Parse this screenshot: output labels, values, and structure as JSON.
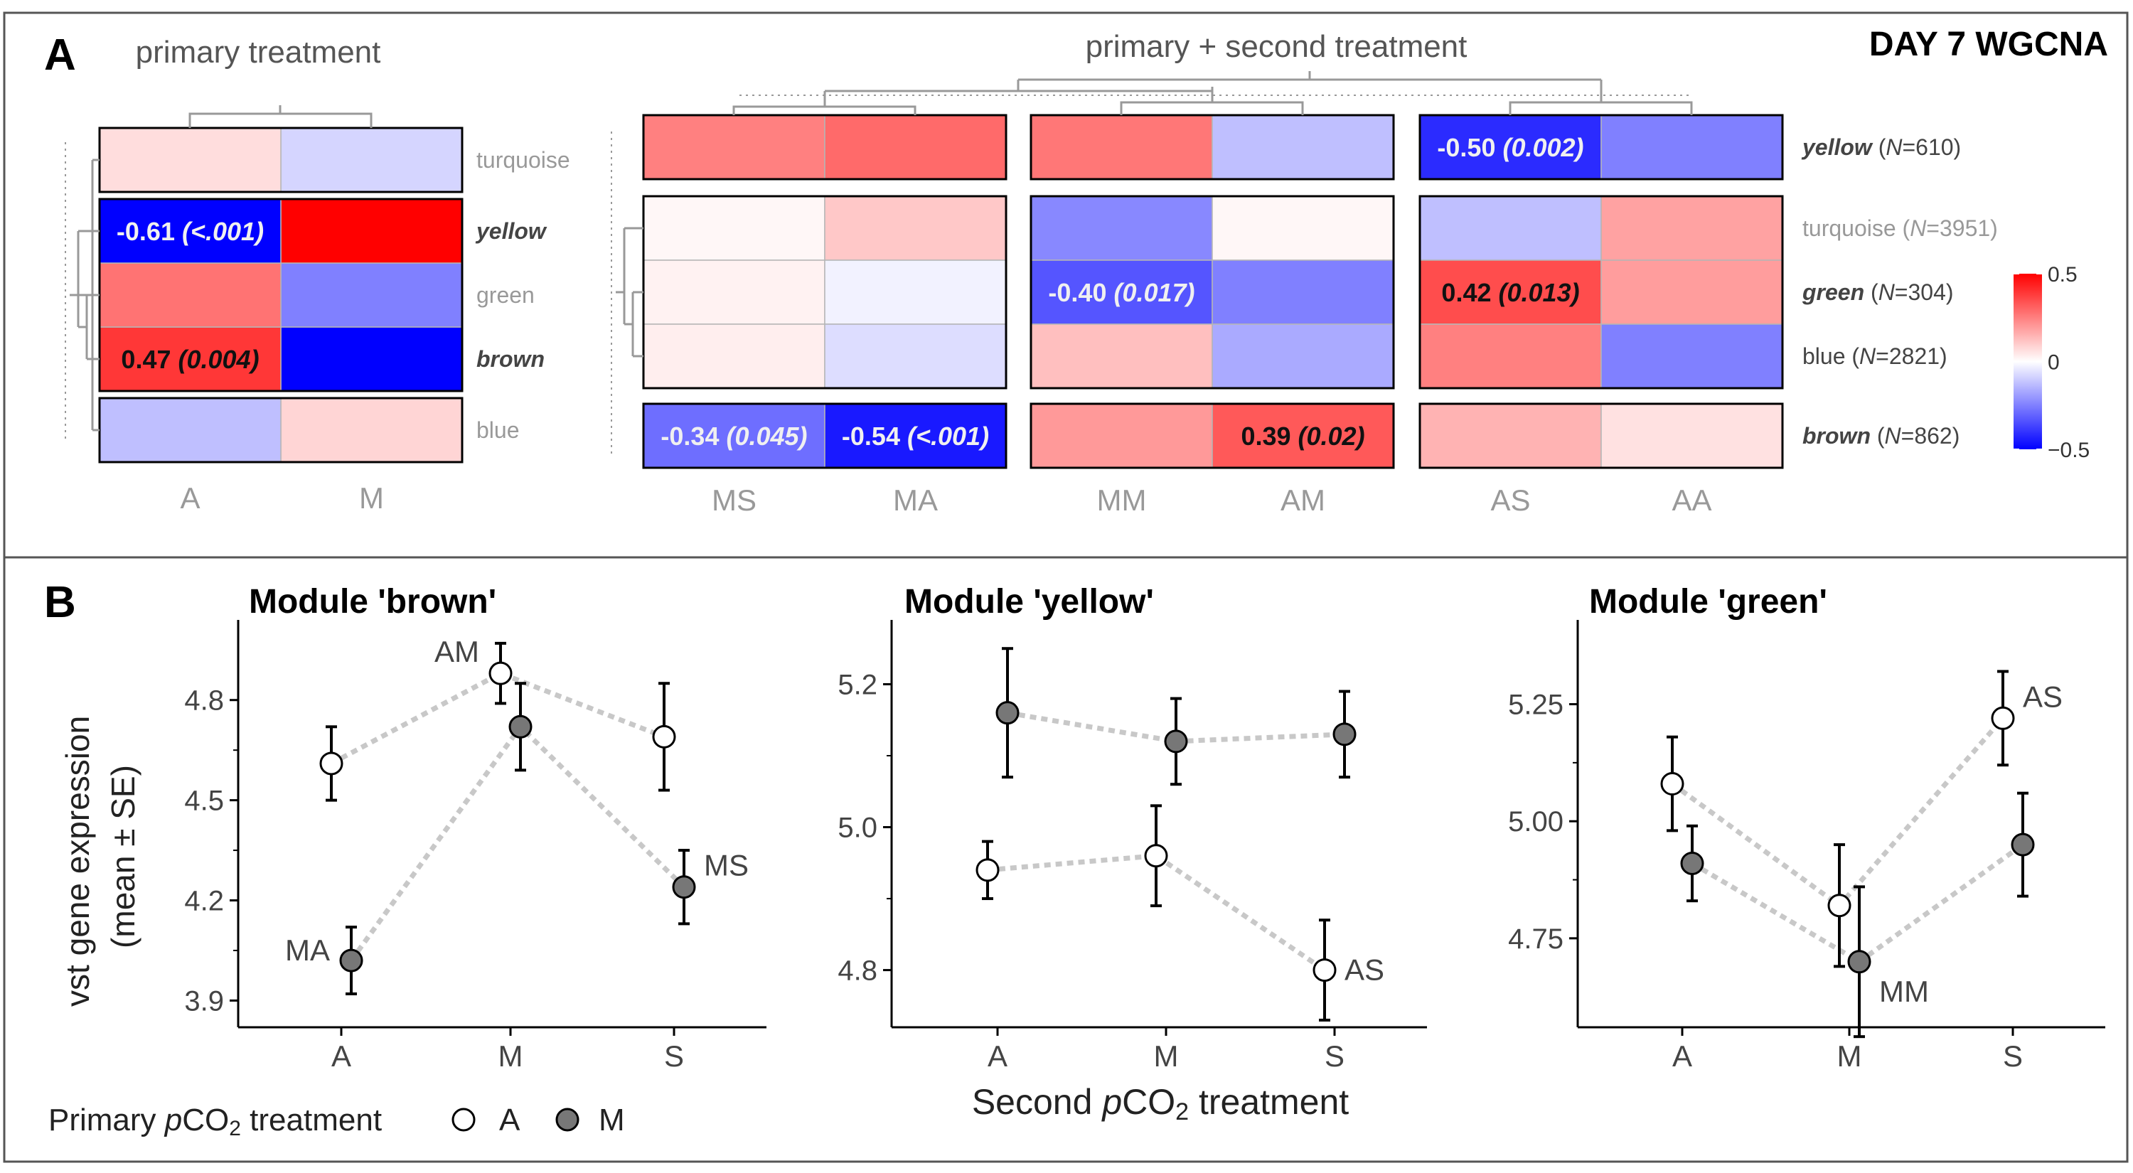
{
  "figure": {
    "title": "DAY 7 WGCNA",
    "panel_a_letter": "A",
    "panel_b_letter": "B",
    "primary_treatment_heading": "primary treatment",
    "primary_second_heading": "primary + second treatment"
  },
  "colors": {
    "frame": "#555555",
    "neg": "#0000ff",
    "mid": "#ffffff",
    "pos": "#ff0000",
    "dendro": "#999999",
    "label_grey": "#999999",
    "label_dark": "#444444",
    "dot_line": "#c8c8c8",
    "open_point": "#ffffff",
    "filled_point": "#777777"
  },
  "chart_data": [
    {
      "type": "heatmap",
      "panel": "A-primary",
      "columns": [
        "A",
        "M"
      ],
      "rows": [
        "turquoise",
        "yellow",
        "green",
        "brown",
        "blue"
      ],
      "row_label_style": [
        "grey",
        "bold-italic",
        "grey",
        "bold-italic",
        "grey"
      ],
      "values": [
        [
          0.08,
          -0.1
        ],
        [
          -0.61,
          0.65
        ],
        [
          0.33,
          -0.3
        ],
        [
          0.47,
          -0.62
        ],
        [
          -0.15,
          0.1
        ]
      ],
      "cell_labels": [
        [
          "",
          ""
        ],
        [
          "-0.61 (<.001)",
          ""
        ],
        [
          "",
          ""
        ],
        [
          "0.47 (0.004)",
          ""
        ],
        [
          "",
          ""
        ]
      ],
      "groups": [
        [
          0
        ],
        [
          1,
          2,
          3
        ],
        [
          4
        ]
      ]
    },
    {
      "type": "heatmap",
      "panel": "A-primary-second",
      "columns": [
        "MS",
        "MA",
        "MM",
        "AM",
        "AS",
        "AA"
      ],
      "rows": [
        "yellow",
        "turquoise",
        "green",
        "blue",
        "brown"
      ],
      "row_labels": [
        {
          "name": "yellow",
          "n": "610",
          "style": "bold-italic"
        },
        {
          "name": "turquoise",
          "n": "3951",
          "style": "grey"
        },
        {
          "name": "green",
          "n": "304",
          "style": "bold-italic"
        },
        {
          "name": "blue",
          "n": "2821",
          "style": "plain"
        },
        {
          "name": "brown",
          "n": "862",
          "style": "bold-italic"
        }
      ],
      "values": [
        [
          0.3,
          0.35,
          0.32,
          -0.15,
          -0.5,
          -0.3
        ],
        [
          0.02,
          0.13,
          -0.28,
          0.02,
          -0.15,
          0.22
        ],
        [
          0.03,
          -0.03,
          -0.4,
          -0.3,
          0.42,
          0.23
        ],
        [
          0.04,
          -0.08,
          0.15,
          -0.2,
          0.3,
          -0.3
        ],
        [
          -0.34,
          -0.54,
          0.24,
          0.39,
          0.18,
          0.07
        ]
      ],
      "cell_labels": [
        [
          "",
          "",
          "",
          "",
          "-0.50 (0.002)",
          ""
        ],
        [
          "",
          "",
          "",
          "",
          "",
          ""
        ],
        [
          "",
          "",
          "-0.40 (0.017)",
          "",
          "0.42 (0.013)",
          ""
        ],
        [
          "",
          "",
          "",
          "",
          "",
          ""
        ],
        [
          "-0.34 (0.045)",
          "-0.54 (<.001)",
          "",
          "0.39 (0.02)",
          "",
          ""
        ]
      ],
      "row_groups": [
        [
          0
        ],
        [
          1,
          2,
          3
        ],
        [
          4
        ]
      ],
      "col_groups": [
        [
          0,
          1
        ],
        [
          2,
          3
        ],
        [
          4,
          5
        ]
      ],
      "legend": {
        "ticks": [
          0.5,
          0,
          -0.5
        ],
        "tick_labels": [
          "0.5",
          "0",
          "−0.5"
        ],
        "range": [
          -0.5,
          0.5
        ]
      }
    },
    {
      "type": "scatter",
      "panel": "B",
      "title": "Module 'brown'",
      "x": [
        "A",
        "M",
        "S"
      ],
      "ylim": [
        3.82,
        5.04
      ],
      "yticks": [
        3.9,
        4.2,
        4.5,
        4.8
      ],
      "ytick_labels": [
        "3.9",
        "4.2",
        "4.5",
        "4.8"
      ],
      "series": [
        {
          "name": "A",
          "values": [
            4.61,
            4.88,
            4.69
          ],
          "se": [
            0.11,
            0.09,
            0.16
          ]
        },
        {
          "name": "M",
          "values": [
            4.02,
            4.72,
            4.24
          ],
          "se": [
            0.1,
            0.13,
            0.11
          ]
        }
      ],
      "point_labels": [
        {
          "text": "AM",
          "series": 0,
          "index": 1,
          "pos": "upper-left"
        },
        {
          "text": "MS",
          "series": 1,
          "index": 2,
          "pos": "upper-right"
        },
        {
          "text": "MA",
          "series": 1,
          "index": 0,
          "pos": "left"
        }
      ]
    },
    {
      "type": "scatter",
      "panel": "B",
      "title": "Module 'yellow'",
      "x": [
        "A",
        "M",
        "S"
      ],
      "ylim": [
        4.72,
        5.29
      ],
      "yticks": [
        4.8,
        5.0,
        5.2
      ],
      "ytick_labels": [
        "4.8",
        "5.0",
        "5.2"
      ],
      "series": [
        {
          "name": "A",
          "values": [
            4.94,
            4.96,
            4.8
          ],
          "se": [
            0.04,
            0.07,
            0.07
          ]
        },
        {
          "name": "M",
          "values": [
            5.16,
            5.12,
            5.13
          ],
          "se": [
            0.09,
            0.06,
            0.06
          ]
        }
      ],
      "point_labels": [
        {
          "text": "AS",
          "series": 0,
          "index": 2,
          "pos": "right"
        }
      ]
    },
    {
      "type": "scatter",
      "panel": "B",
      "title": "Module 'green'",
      "x": [
        "A",
        "M",
        "S"
      ],
      "ylim": [
        4.56,
        5.43
      ],
      "yticks": [
        4.75,
        5.0,
        5.25
      ],
      "ytick_labels": [
        "4.75",
        "5.00",
        "5.25"
      ],
      "series": [
        {
          "name": "A",
          "values": [
            5.08,
            4.82,
            5.22
          ],
          "se": [
            0.1,
            0.13,
            0.1
          ]
        },
        {
          "name": "M",
          "values": [
            4.91,
            4.7,
            4.95
          ],
          "se": [
            0.08,
            0.16,
            0.11
          ]
        }
      ],
      "point_labels": [
        {
          "text": "AS",
          "series": 0,
          "index": 2,
          "pos": "upper-right"
        },
        {
          "text": "MM",
          "series": 1,
          "index": 1,
          "pos": "lower-right"
        }
      ]
    }
  ],
  "panel_b": {
    "ylabel_line1": "vst gene expression",
    "ylabel_line2": "(mean ± SE)",
    "xlabel_pre": "Second ",
    "xlabel_p": "p",
    "xlabel_co": "CO",
    "xlabel_sub": "2",
    "xlabel_post": " treatment",
    "legend_pre": "Primary ",
    "legend_p": "p",
    "legend_co": "CO",
    "legend_sub": "2",
    "legend_post": " treatment",
    "legend_items": [
      "A",
      "M"
    ]
  }
}
